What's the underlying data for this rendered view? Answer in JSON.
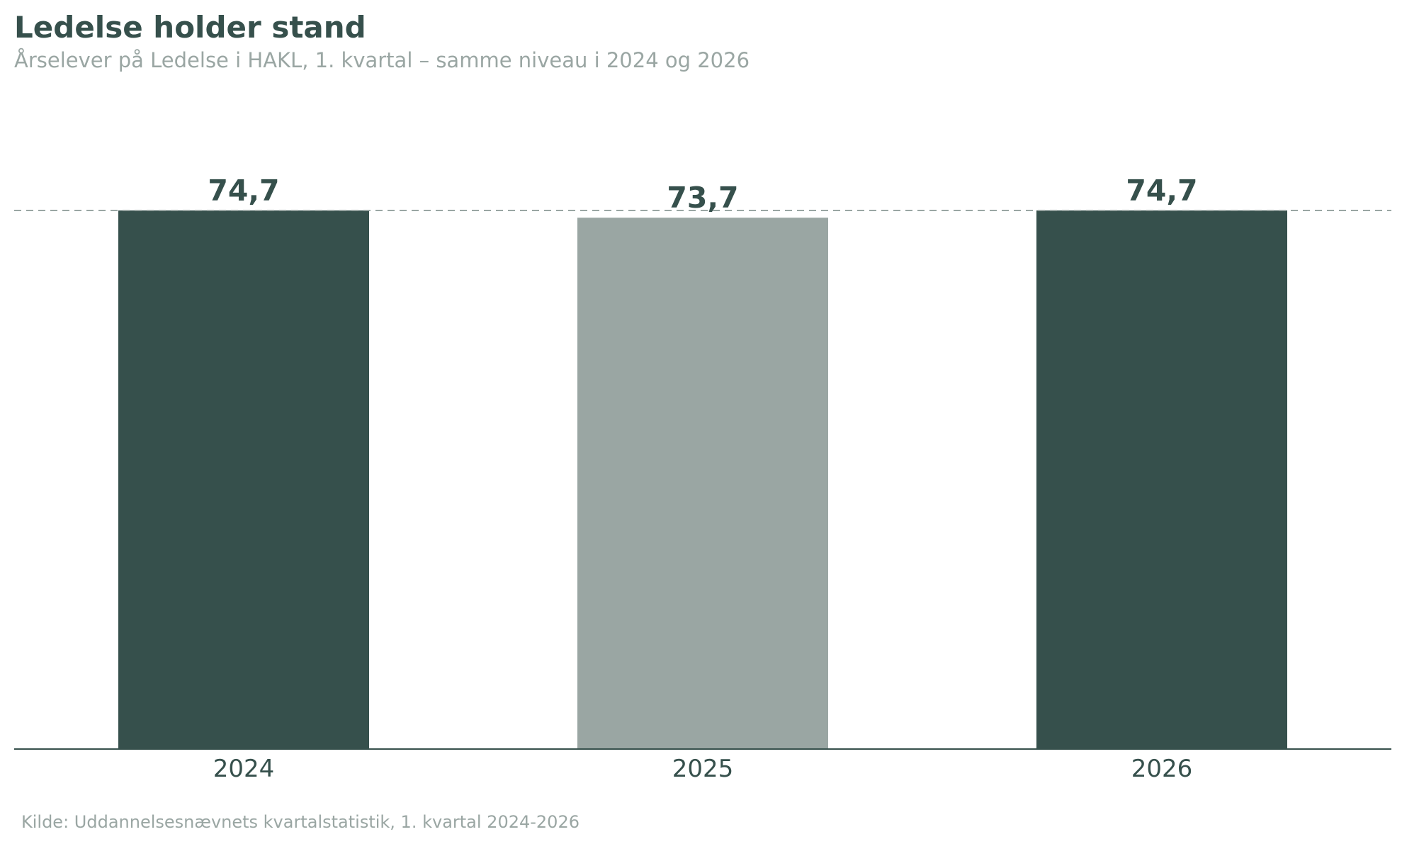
{
  "title": "Ledelse holder stand",
  "subtitle": "Årselever på Ledelse i HAKL, 1. kvartal – samme niveau i 2024 og 2026",
  "source": "Kilde: Uddannelsesnævnets kvartalstatistik, 1. kvartal 2024-2026",
  "colors": {
    "highlight": "#36504c",
    "muted": "#9aa6a3",
    "text_dark": "#36504c",
    "text_muted": "#9aa6a3",
    "reference_line": "#9aa6a3"
  },
  "chart_data": {
    "type": "bar",
    "categories": [
      "2024",
      "2025",
      "2026"
    ],
    "values": [
      74.7,
      73.7,
      74.7
    ],
    "value_labels": [
      "74,7",
      "73,7",
      "74,7"
    ],
    "bar_colors": [
      "#36504c",
      "#9aa6a3",
      "#36504c"
    ],
    "reference_line": {
      "value": 74.7,
      "style": "dashed"
    },
    "ylim": [
      0,
      74.7
    ],
    "y_axis_visible": false,
    "grid": false,
    "legend": "none",
    "xlabel": "",
    "ylabel": ""
  }
}
